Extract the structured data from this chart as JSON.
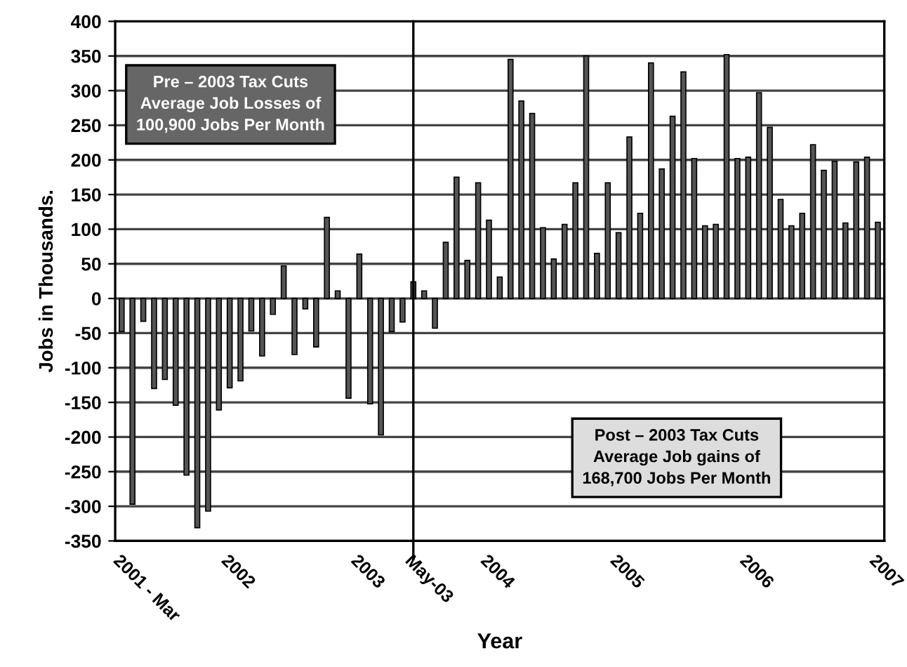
{
  "chart_data": {
    "type": "bar",
    "xlabel": "Year",
    "ylabel": "Jobs in Thousands.",
    "categories": [
      "2001 - Mar",
      null,
      null,
      null,
      null,
      null,
      null,
      null,
      null,
      null,
      "2002",
      null,
      null,
      null,
      null,
      null,
      null,
      null,
      null,
      null,
      null,
      null,
      "2003",
      null,
      null,
      null,
      null,
      "May-03",
      null,
      null,
      null,
      null,
      null,
      null,
      "2004",
      null,
      null,
      null,
      null,
      null,
      null,
      null,
      null,
      null,
      null,
      null,
      "2005",
      null,
      null,
      null,
      null,
      null,
      null,
      null,
      null,
      null,
      null,
      null,
      "2006",
      null,
      null,
      null,
      null,
      null,
      null,
      null,
      null,
      null,
      null,
      null,
      "2007"
    ],
    "values": [
      -48,
      -297,
      -33,
      -130,
      -117,
      -154,
      -255,
      -331,
      -307,
      -161,
      -129,
      -119,
      -47,
      -83,
      -23,
      47,
      -81,
      -15,
      -70,
      117,
      11,
      -144,
      64,
      -152,
      -197,
      -48,
      -34,
      24,
      11,
      -43,
      81,
      175,
      55,
      167,
      113,
      31,
      345,
      285,
      267,
      102,
      57,
      107,
      167,
      350,
      65,
      167,
      95,
      233,
      123,
      340,
      187,
      263,
      327,
      202,
      105,
      107,
      352,
      202,
      204,
      297,
      247,
      143,
      105,
      123,
      222,
      185,
      198,
      109,
      197,
      204,
      110
    ],
    "color": "#555555",
    "ylim": [
      -350,
      400
    ],
    "yticks": [
      -350,
      -300,
      -250,
      -200,
      -150,
      -100,
      -50,
      0,
      50,
      100,
      150,
      200,
      250,
      300,
      350,
      400
    ],
    "grid": "y",
    "ref_lines": [
      {
        "axis": "x",
        "value": "May-03",
        "color": "#000000"
      }
    ],
    "annotations": [
      "Pre – 2003 Tax Cuts",
      "Average Job Losses of\n100,900 Jobs Per Month",
      "Post – 2003 Tax Cuts",
      "Average Job gains of\n168,700 Jobs Per Month"
    ]
  }
}
